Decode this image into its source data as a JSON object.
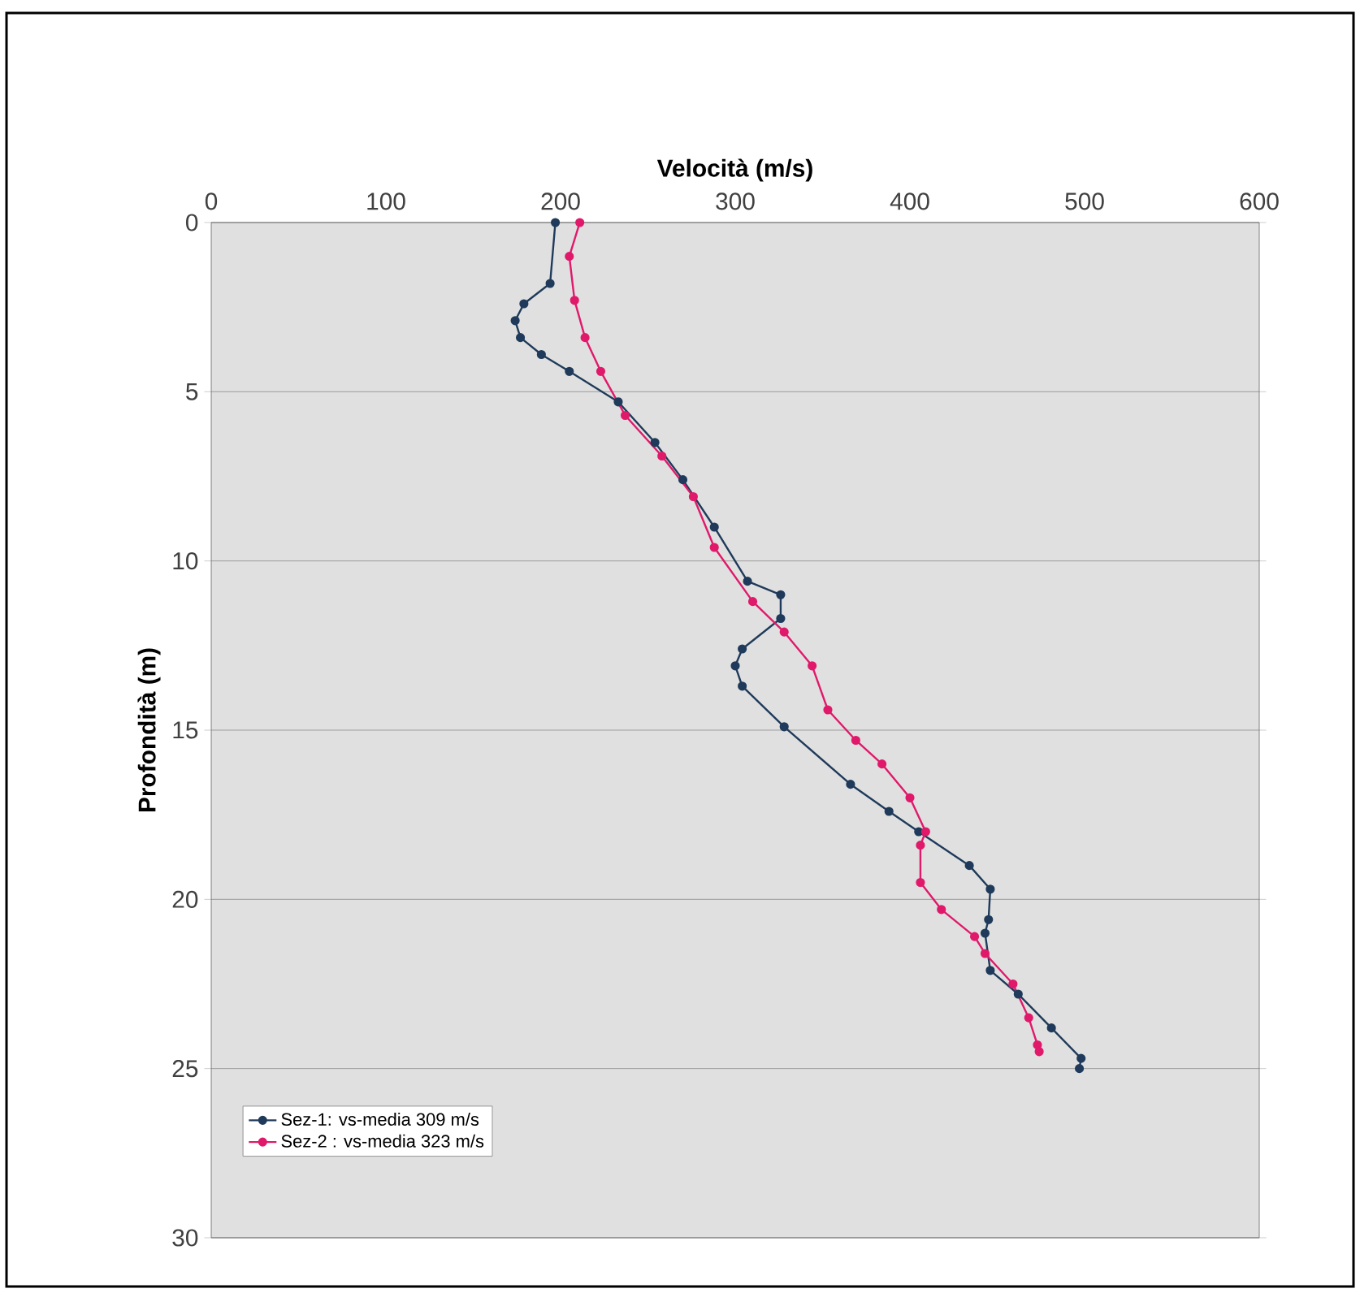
{
  "chart_data": {
    "type": "line",
    "xlabel": "Velocità (m/s)",
    "ylabel": "Profondità (m)",
    "xlim": [
      0,
      600
    ],
    "xticks": [
      0,
      100,
      200,
      300,
      400,
      500,
      600
    ],
    "ylim": [
      30,
      0
    ],
    "yticks": [
      0,
      5,
      10,
      15,
      20,
      25,
      30
    ],
    "grid": "y",
    "legend": "bottom left",
    "marker": "circle",
    "line_style": "solid",
    "series": [
      {
        "name": "Sez-1: vs-media 309 m/s",
        "color": "#1f3a5a",
        "x": [
          197,
          194,
          179,
          174,
          177,
          189,
          205,
          233,
          254,
          270,
          288,
          307,
          326,
          326,
          304,
          300,
          304,
          328,
          366,
          388,
          405,
          434,
          446,
          445,
          443,
          446,
          462,
          481,
          498,
          497
        ],
        "values": [
          0,
          1.8,
          2.4,
          2.9,
          3.4,
          3.9,
          4.4,
          5.3,
          6.5,
          7.6,
          9.0,
          10.6,
          11.0,
          11.7,
          12.6,
          13.1,
          13.7,
          14.9,
          16.6,
          17.4,
          18.0,
          19.0,
          19.7,
          20.6,
          21.0,
          22.1,
          22.8,
          23.8,
          24.7,
          25.0
        ]
      },
      {
        "name": "Sez-2 : vs-media 323 m/s",
        "color": "#e0196a",
        "x": [
          211,
          205,
          208,
          214,
          223,
          237,
          258,
          276,
          288,
          310,
          328,
          344,
          353,
          369,
          384,
          400,
          409,
          406,
          406,
          418,
          437,
          443,
          459,
          468,
          473,
          474
        ],
        "values": [
          0,
          1.0,
          2.3,
          3.4,
          4.4,
          5.7,
          6.9,
          8.1,
          9.6,
          11.2,
          12.1,
          13.1,
          14.4,
          15.3,
          16.0,
          17.0,
          18.0,
          18.4,
          19.5,
          20.3,
          21.1,
          21.6,
          22.5,
          23.5,
          24.3,
          24.5
        ]
      }
    ]
  }
}
